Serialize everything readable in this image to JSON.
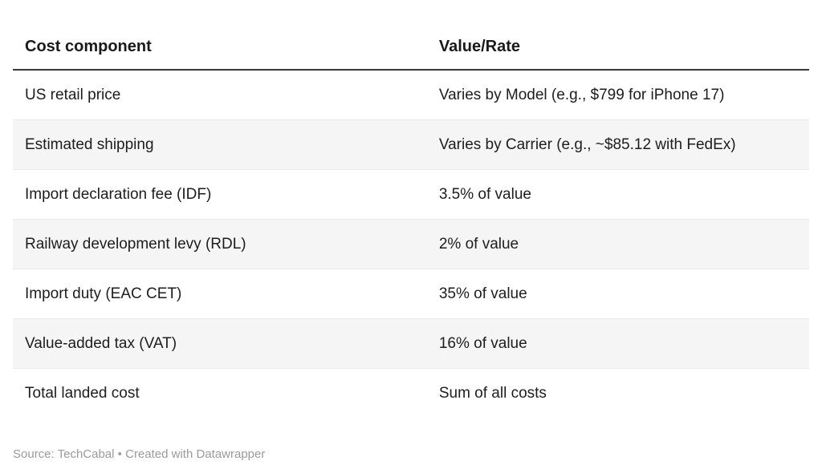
{
  "chart_data": {
    "type": "table",
    "columns": [
      "Cost component",
      "Value/Rate"
    ],
    "rows": [
      [
        "US retail price",
        "Varies by Model (e.g., $799 for iPhone 17)"
      ],
      [
        "Estimated shipping",
        "Varies by Carrier (e.g., ~$85.12 with FedEx)"
      ],
      [
        "Import declaration fee (IDF)",
        "3.5% of value"
      ],
      [
        "Railway development levy (RDL)",
        "2% of value"
      ],
      [
        "Import duty (EAC CET)",
        "35% of value"
      ],
      [
        "Value-added tax (VAT)",
        "16% of value"
      ],
      [
        "Total landed cost",
        "Sum of all costs"
      ]
    ],
    "layout": {
      "zebra_striping": true,
      "striped_row_indices": [
        1,
        3,
        5
      ],
      "header_rule": true,
      "legend_position": "none",
      "grid": "horizontal-row-borders"
    }
  },
  "footer": {
    "source_label": "Source:",
    "source_name": "TechCabal",
    "separator": "•",
    "attribution": "Created with Datawrapper"
  },
  "colors": {
    "background": "#ffffff",
    "text": "#1d1d1d",
    "header_text": "#1a1a1a",
    "header_rule": "#3a3a3a",
    "row_stripe": "#f5f5f5",
    "row_border": "#e8e8e8",
    "footer_text": "#9b9b9b"
  }
}
